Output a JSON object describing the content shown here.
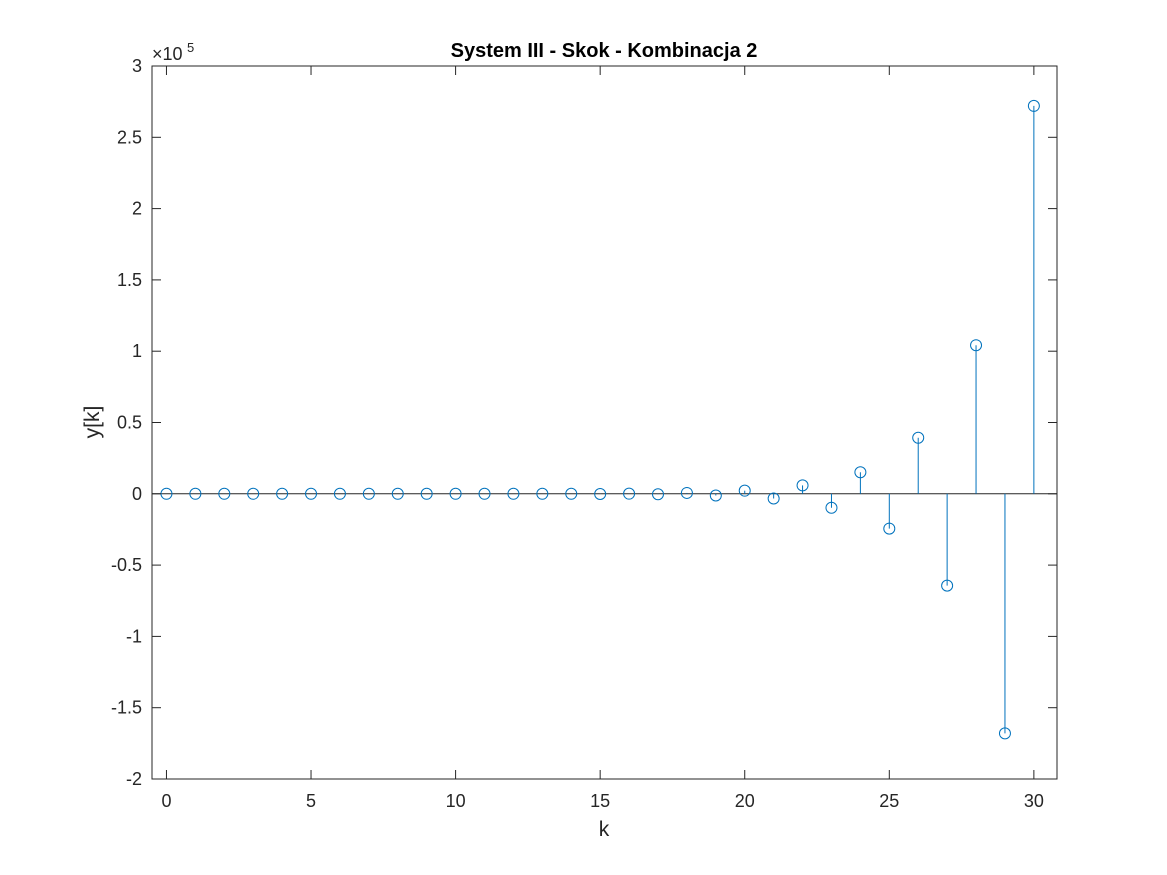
{
  "chart_data": {
    "type": "stem",
    "title": "System III - Skok - Kombinacja 2",
    "xlabel": "k",
    "ylabel": "y[k]",
    "xlim": [
      -0.5,
      30.8
    ],
    "ylim": [
      -2,
      3
    ],
    "y_scale_label": {
      "prefix": "×10",
      "exponent": "5"
    },
    "xticks": [
      "0",
      "5",
      "10",
      "15",
      "20",
      "25",
      "30"
    ],
    "yticks": [
      "-2",
      "-1.5",
      "-1",
      "-0.5",
      "0",
      "0.5",
      "1",
      "1.5",
      "2",
      "2.5",
      "3"
    ],
    "x": [
      0,
      1,
      2,
      3,
      4,
      5,
      6,
      7,
      8,
      9,
      10,
      11,
      12,
      13,
      14,
      15,
      16,
      17,
      18,
      19,
      20,
      21,
      22,
      23,
      24,
      25,
      26,
      27,
      28,
      29,
      30
    ],
    "y": [
      0,
      0,
      0,
      0,
      0,
      0,
      0,
      0,
      0,
      0,
      0,
      0,
      0,
      0,
      0,
      -0.0015,
      0.001,
      -0.003,
      0.006,
      -0.012,
      0.022,
      -0.033,
      0.059,
      -0.098,
      0.151,
      -0.244,
      0.393,
      -0.644,
      1.042,
      -1.68,
      2.72
    ],
    "color": "#0072BD",
    "grid": false,
    "legend": "none"
  }
}
